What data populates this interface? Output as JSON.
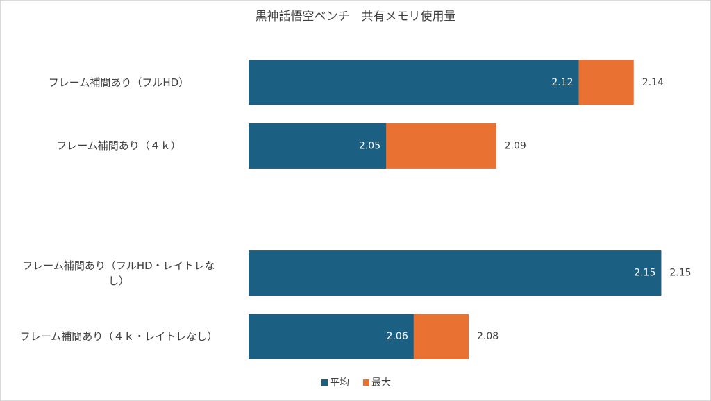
{
  "chart_data": {
    "type": "bar",
    "orientation": "horizontal",
    "title": "黒神話悟空ベンチ　共有メモリ使用量",
    "categories": [
      "フレーム補間あり（フルHD）",
      "フレーム補間あり（４ｋ）",
      null,
      "フレーム補間あり（フルHD・レイトレなし）",
      "フレーム補間あり（４ｋ・レイトレなし）"
    ],
    "series": [
      {
        "name": "平均",
        "color": "#1b6083",
        "values": [
          2.12,
          2.05,
          null,
          2.15,
          2.06
        ]
      },
      {
        "name": "最大",
        "color": "#e97132",
        "values": [
          2.14,
          2.09,
          null,
          2.15,
          2.08
        ]
      }
    ],
    "xlim": [
      2.0,
      2.16
    ],
    "legend": "bottom"
  }
}
